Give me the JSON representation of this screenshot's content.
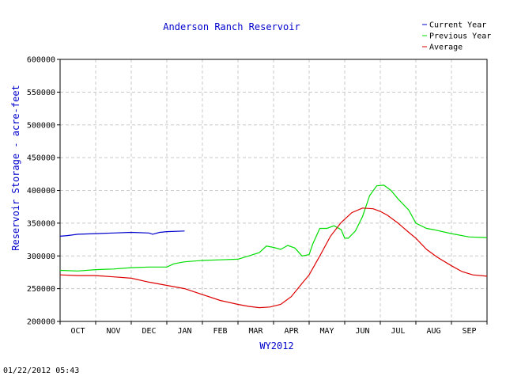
{
  "timestamp": "01/22/2012 05:43",
  "chart_data": {
    "type": "line",
    "title": "Anderson Ranch Reservoir",
    "xlabel": "WY2012",
    "ylabel": "Reservoir Storage - acre-feet",
    "categories": [
      "OCT",
      "NOV",
      "DEC",
      "JAN",
      "FEB",
      "MAR",
      "APR",
      "MAY",
      "JUN",
      "JUL",
      "AUG",
      "SEP"
    ],
    "yticks": [
      "200000",
      "250000",
      "300000",
      "350000",
      "400000",
      "450000",
      "500000",
      "550000",
      "600000"
    ],
    "ylim": [
      200000,
      600000
    ],
    "xlim": [
      0,
      12
    ],
    "grid": true,
    "legend_position": "top-right",
    "colors": {
      "title": "#0000cc",
      "axis_label": "#0000cc",
      "grid": "#c8c8c8"
    },
    "series": [
      {
        "name": "Current Year",
        "color": "#0000cc",
        "x": [
          0,
          0.2,
          0.5,
          1.0,
          1.5,
          2.0,
          2.5,
          2.6,
          2.8,
          3.0,
          3.5
        ],
        "y": [
          330000,
          331000,
          333000,
          334000,
          335000,
          336000,
          335000,
          333000,
          336000,
          337000,
          338000
        ]
      },
      {
        "name": "Previous Year",
        "color": "#00dd00",
        "x": [
          0,
          0.5,
          1.0,
          1.5,
          2.0,
          2.5,
          3.0,
          3.2,
          3.5,
          4.0,
          4.5,
          5.0,
          5.3,
          5.6,
          5.8,
          6.0,
          6.2,
          6.4,
          6.6,
          6.8,
          7.0,
          7.1,
          7.3,
          7.5,
          7.7,
          7.9,
          8.0,
          8.1,
          8.3,
          8.5,
          8.7,
          8.9,
          9.1,
          9.3,
          9.5,
          9.8,
          10.0,
          10.3,
          10.5,
          11.0,
          11.5,
          12.0
        ],
        "y": [
          278000,
          277000,
          279000,
          280000,
          282000,
          283000,
          283000,
          288000,
          291000,
          293000,
          294000,
          295000,
          300000,
          305000,
          315000,
          313000,
          310000,
          316000,
          312000,
          300000,
          302000,
          318000,
          342000,
          342000,
          346000,
          340000,
          327000,
          327000,
          338000,
          360000,
          392000,
          407000,
          408000,
          400000,
          387000,
          370000,
          350000,
          342000,
          340000,
          334000,
          329000,
          328000
        ]
      },
      {
        "name": "Average",
        "color": "#dd0000",
        "x": [
          0,
          0.5,
          1.0,
          1.5,
          2.0,
          2.5,
          3.0,
          3.5,
          4.0,
          4.5,
          5.0,
          5.3,
          5.6,
          5.9,
          6.2,
          6.5,
          6.8,
          7.0,
          7.3,
          7.6,
          7.9,
          8.2,
          8.5,
          8.8,
          9.0,
          9.2,
          9.5,
          9.8,
          10.0,
          10.3,
          10.6,
          11.0,
          11.3,
          11.6,
          12.0
        ],
        "y": [
          271000,
          270000,
          270000,
          268000,
          266000,
          260000,
          255000,
          250000,
          241000,
          232000,
          226000,
          223000,
          221000,
          222000,
          226000,
          238000,
          258000,
          271000,
          300000,
          330000,
          351000,
          366000,
          373000,
          372000,
          368000,
          362000,
          350000,
          336000,
          327000,
          310000,
          298000,
          285000,
          276000,
          271000,
          269000
        ]
      }
    ]
  }
}
